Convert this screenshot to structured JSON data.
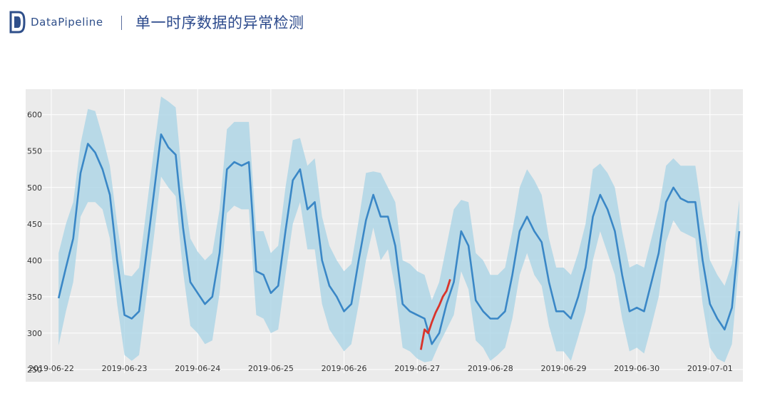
{
  "header": {
    "brand": "DataPipeline",
    "title": "单一时序数据的异常检测"
  },
  "colors": {
    "background": "#ebebeb",
    "grid": "#ffffff",
    "line": "#3a87c6",
    "band": "#a9d3e6",
    "anomaly": "#d9342b",
    "brand_text": "#2f4f8a",
    "title_text": "#2c4a8c"
  },
  "chart_data": {
    "type": "line",
    "title": "",
    "xlabel": "",
    "ylabel": "",
    "ylim": [
      245,
      635
    ],
    "yticks": [
      250,
      300,
      350,
      400,
      450,
      500,
      550,
      600
    ],
    "xlim": [
      -0.35,
      9.45
    ],
    "xtick_positions": [
      0,
      1,
      2,
      3,
      4,
      5,
      6,
      7,
      8,
      9
    ],
    "xtick_labels": [
      "2019-06-22",
      "2019-06-23",
      "2019-06-24",
      "2019-06-25",
      "2019-06-26",
      "2019-06-27",
      "2019-06-28",
      "2019-06-29",
      "2019-06-30",
      "2019-07-01"
    ],
    "grid": true,
    "legend": "none",
    "series": [
      {
        "role": "expected",
        "x": [
          0.1,
          0.2,
          0.3,
          0.4,
          0.5,
          0.6,
          0.7,
          0.8,
          0.9,
          1.0,
          1.1,
          1.2,
          1.3,
          1.4,
          1.5,
          1.6,
          1.7,
          1.8,
          1.9,
          2.0,
          2.1,
          2.2,
          2.3,
          2.4,
          2.5,
          2.6,
          2.7,
          2.8,
          2.9,
          3.0,
          3.1,
          3.2,
          3.3,
          3.4,
          3.5,
          3.6,
          3.7,
          3.8,
          3.9,
          4.0,
          4.1,
          4.2,
          4.3,
          4.4,
          4.5,
          4.6,
          4.7,
          4.8,
          4.9,
          5.0,
          5.1,
          5.2,
          5.3,
          5.4,
          5.5,
          5.6,
          5.7,
          5.8,
          5.9,
          6.0,
          6.1,
          6.2,
          6.3,
          6.4,
          6.5,
          6.6,
          6.7,
          6.8,
          6.9,
          7.0,
          7.1,
          7.2,
          7.3,
          7.4,
          7.5,
          7.6,
          7.7,
          7.8,
          7.9,
          8.0,
          8.1,
          8.2,
          8.3,
          8.4,
          8.5,
          8.6,
          8.7,
          8.8,
          8.9,
          9.0,
          9.1,
          9.2,
          9.3,
          9.4
        ],
        "y": [
          348,
          390,
          430,
          520,
          560,
          548,
          525,
          490,
          400,
          325,
          320,
          330,
          410,
          490,
          573,
          555,
          545,
          445,
          370,
          355,
          340,
          350,
          410,
          525,
          535,
          530,
          535,
          385,
          380,
          355,
          365,
          440,
          510,
          525,
          470,
          480,
          400,
          365,
          350,
          330,
          340,
          400,
          455,
          490,
          460,
          460,
          420,
          340,
          330,
          325,
          320,
          285,
          300,
          340,
          370,
          440,
          420,
          345,
          330,
          320,
          320,
          330,
          380,
          440,
          460,
          440,
          425,
          370,
          330,
          330,
          320,
          350,
          390,
          460,
          490,
          470,
          440,
          380,
          330,
          335,
          330,
          370,
          410,
          480,
          500,
          485,
          480,
          480,
          400,
          340,
          320,
          305,
          335,
          440
        ],
        "band_upper": [
          410,
          450,
          480,
          560,
          608,
          605,
          570,
          530,
          450,
          380,
          378,
          390,
          470,
          550,
          625,
          618,
          610,
          500,
          430,
          412,
          400,
          410,
          470,
          580,
          590,
          590,
          590,
          440,
          440,
          410,
          420,
          500,
          565,
          568,
          530,
          540,
          460,
          420,
          400,
          385,
          395,
          455,
          520,
          522,
          520,
          500,
          480,
          400,
          395,
          385,
          380,
          345,
          370,
          420,
          470,
          483,
          480,
          410,
          400,
          380,
          380,
          390,
          440,
          500,
          525,
          510,
          490,
          430,
          390,
          390,
          380,
          410,
          450,
          525,
          533,
          520,
          500,
          440,
          390,
          395,
          390,
          430,
          470,
          530,
          540,
          530,
          530,
          530,
          460,
          400,
          380,
          365,
          395,
          483
        ],
        "band_lower": [
          283,
          330,
          370,
          460,
          480,
          480,
          470,
          430,
          340,
          270,
          262,
          270,
          350,
          430,
          515,
          500,
          488,
          385,
          310,
          300,
          285,
          290,
          355,
          465,
          475,
          470,
          470,
          325,
          320,
          300,
          305,
          380,
          450,
          480,
          415,
          415,
          340,
          305,
          290,
          275,
          285,
          340,
          400,
          445,
          400,
          415,
          360,
          280,
          275,
          265,
          260,
          262,
          285,
          305,
          325,
          385,
          360,
          290,
          280,
          262,
          270,
          280,
          320,
          380,
          410,
          380,
          365,
          310,
          275,
          275,
          262,
          295,
          330,
          400,
          440,
          410,
          380,
          320,
          275,
          280,
          272,
          310,
          350,
          425,
          455,
          440,
          435,
          430,
          340,
          280,
          265,
          260,
          285,
          400
        ]
      },
      {
        "role": "anomaly",
        "x": [
          5.05,
          5.1,
          5.15,
          5.2,
          5.25,
          5.3,
          5.35,
          5.4,
          5.45
        ],
        "y": [
          277,
          305,
          300,
          315,
          328,
          338,
          350,
          358,
          374
        ]
      }
    ]
  }
}
